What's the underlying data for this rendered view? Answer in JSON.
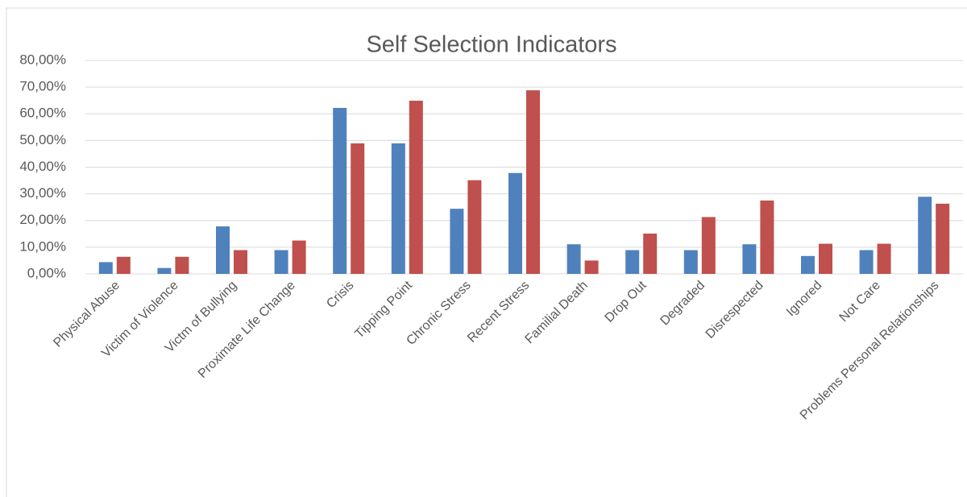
{
  "chart_data": {
    "type": "bar",
    "title": "Self Selection Indicators",
    "categories": [
      "Physical Abuse",
      "Victim of Violence",
      "Victm of Bullying",
      "Proximate Life Change",
      "Crisis",
      "Tipping Point",
      "Chronic Stress",
      "Recent Stress",
      "Familial Death",
      "Drop Out",
      "Degraded",
      "Disrespected",
      "Ignored",
      "Not Care",
      "Problems Personal Relationships"
    ],
    "series": [
      {
        "color": "#4f81bd",
        "values": [
          4.4,
          2.2,
          17.8,
          8.9,
          62.2,
          48.9,
          24.4,
          37.8,
          11.1,
          8.9,
          8.9,
          11.1,
          6.7,
          8.9,
          28.9
        ]
      },
      {
        "color": "#c0504d",
        "values": [
          6.4,
          6.4,
          8.9,
          12.5,
          48.9,
          64.9,
          35.1,
          68.8,
          5.0,
          15.1,
          21.3,
          27.5,
          11.3,
          11.3,
          26.3
        ]
      }
    ],
    "ylim": [
      0,
      80
    ],
    "yticks": [
      {
        "value": 0,
        "label": "0,00%"
      },
      {
        "value": 10,
        "label": "10,00%"
      },
      {
        "value": 20,
        "label": "20,00%"
      },
      {
        "value": 30,
        "label": "30,00%"
      },
      {
        "value": 40,
        "label": "40,00%"
      },
      {
        "value": 50,
        "label": "50,00%"
      },
      {
        "value": 60,
        "label": "60,00%"
      },
      {
        "value": 70,
        "label": "70,00%"
      },
      {
        "value": 80,
        "label": "80,00%"
      }
    ],
    "grid": true
  }
}
